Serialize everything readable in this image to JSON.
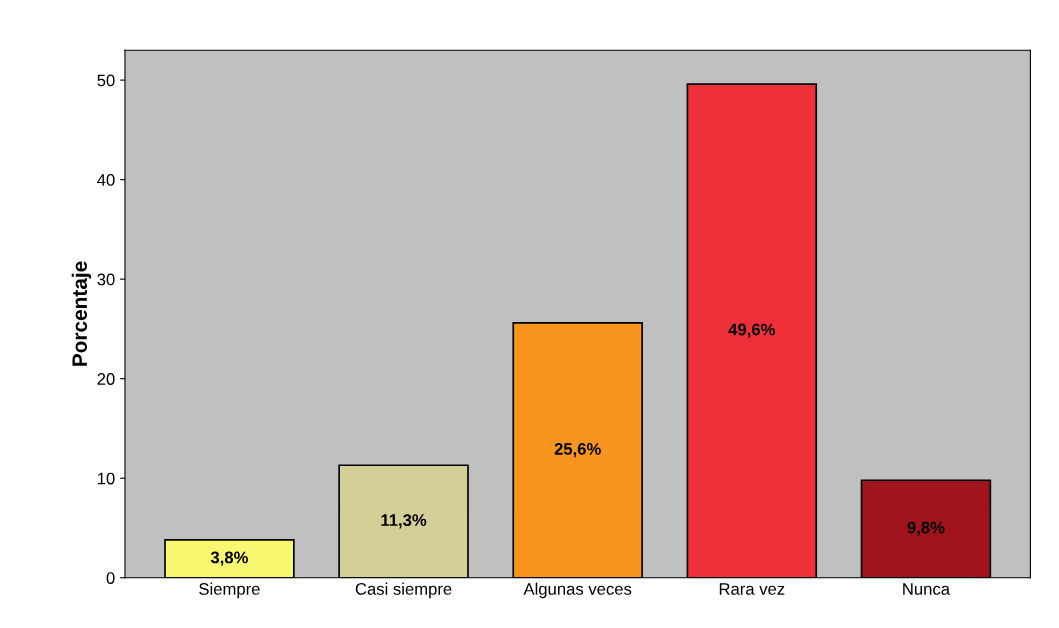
{
  "chart_data": {
    "type": "bar",
    "ylabel": "Porcentaje",
    "categories": [
      "Siempre",
      "Casi siempre",
      "Algunas veces",
      "Rara vez",
      "Nunca"
    ],
    "values": [
      3.8,
      11.3,
      25.6,
      49.6,
      9.8
    ],
    "value_labels": [
      "3,8%",
      "11,3%",
      "25,6%",
      "49,6%",
      "9,8%"
    ],
    "colors": [
      "#f8f870",
      "#d4cf96",
      "#f7951e",
      "#f03038",
      "#a0141c"
    ],
    "ylim": [
      0,
      53
    ],
    "yticks": [
      0,
      10,
      20,
      30,
      40,
      50
    ],
    "grid": false,
    "legend": false
  }
}
